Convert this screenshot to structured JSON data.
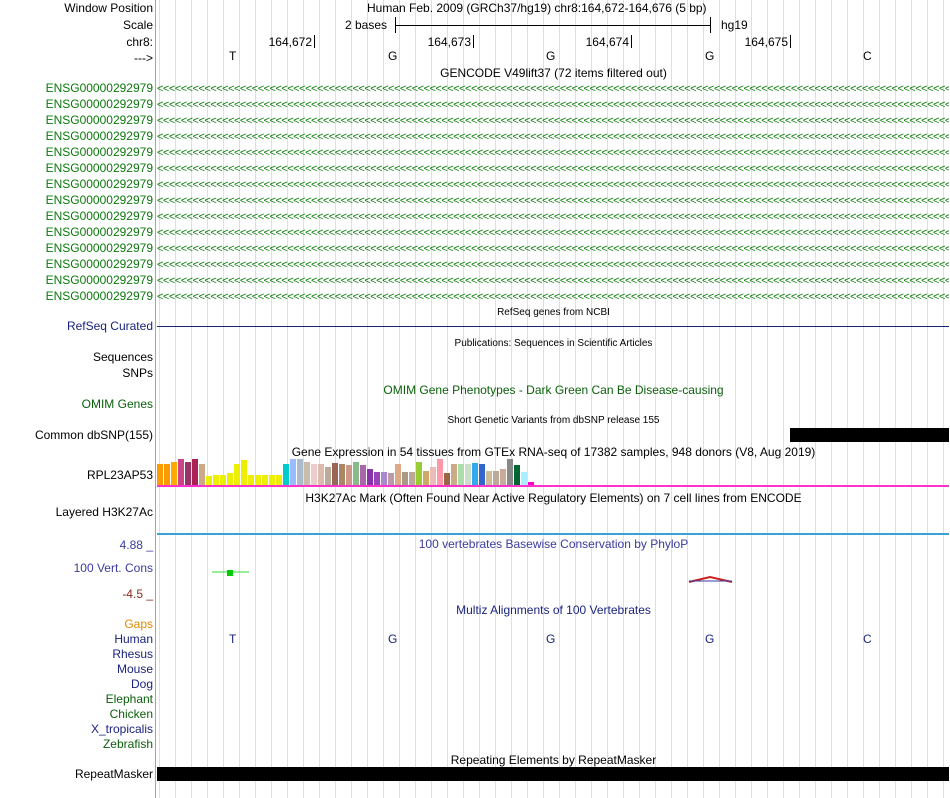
{
  "header": {
    "window_position_label": "Window Position",
    "scale_label": "Scale",
    "chr_label": "chr8:",
    "strand_label": "--->",
    "assembly_text": "Human Feb. 2009 (GRCh37/hg19)   chr8:164,672-164,676 (5 bp)",
    "scale_text": "2 bases",
    "db_text": "hg19",
    "positions": [
      "164,672",
      "164,673",
      "164,674",
      "164,675"
    ],
    "bases": [
      "T",
      "G",
      "G",
      "G",
      "C"
    ]
  },
  "gencode": {
    "title": "GENCODE V49lift37 (72 items filtered out)",
    "gene_label": "ENSG00000292979",
    "row_count": 14,
    "color": "#0b7a0b"
  },
  "refseq": {
    "title": "RefSeq genes from NCBI",
    "label": "RefSeq Curated",
    "color": "#1a237e"
  },
  "publications": {
    "title": "Publications: Sequences in Scientific Articles",
    "label_sequences": "Sequences",
    "label_snps": "SNPs"
  },
  "omim": {
    "title": "OMIM Gene Phenotypes - Dark Green Can Be Disease-causing",
    "label": "OMIM Genes",
    "color": "#0a5f0a"
  },
  "dbsnp": {
    "title": "Short Genetic Variants from dbSNP release 155",
    "label": "Common dbSNP(155)"
  },
  "gtex": {
    "title": "Gene Expression in 54 tissues from GTEx RNA-seq of 17382 samples, 948 donors (V8, Aug 2019)",
    "label": "RPL23AP53",
    "tissue_colors": [
      "#ff9900",
      "#ff9900",
      "#ffaa00",
      "#cc4488",
      "#993366",
      "#aa2255",
      "#ccaa88",
      "#eeee00",
      "#eeee00",
      "#eeee00",
      "#eeee00",
      "#eeee00",
      "#eeee00",
      "#eeee00",
      "#eeee00",
      "#eeee00",
      "#eeee00",
      "#eeee00",
      "#00cccc",
      "#99bbff",
      "#aabbcc",
      "#ccbbaa",
      "#eecccc",
      "#ddbbaa",
      "#bbaa99",
      "#996655",
      "#aa8866",
      "#cc9988",
      "#88bb88",
      "#aa66aa",
      "#8833aa",
      "#9944bb",
      "#aa88cc",
      "#bb99aa",
      "#ddaa88",
      "#aa9988",
      "#bbaa99",
      "#99cc33",
      "#ccaa66",
      "#eebbbb",
      "#ff99aa",
      "#996644",
      "#ccaa88",
      "#aaddaa",
      "#ccddcc",
      "#33aaee",
      "#3366cc",
      "#ccbb99",
      "#bbaa99",
      "#ccaa99",
      "#888888",
      "#006633",
      "#aaeeff",
      "#ff00cc"
    ],
    "tissue_levels": [
      0.8,
      0.8,
      0.9,
      1.0,
      0.9,
      1.0,
      0.8,
      0.35,
      0.4,
      0.4,
      0.45,
      0.8,
      0.95,
      0.4,
      0.4,
      0.4,
      0.4,
      0.4,
      0.8,
      1.0,
      1.0,
      0.9,
      0.8,
      0.8,
      0.7,
      0.85,
      0.8,
      0.75,
      0.9,
      0.75,
      0.6,
      0.5,
      0.5,
      0.45,
      0.8,
      0.5,
      0.5,
      0.9,
      0.55,
      0.7,
      1.0,
      0.45,
      0.8,
      0.8,
      0.8,
      0.85,
      0.8,
      0.55,
      0.55,
      0.6,
      1.0,
      0.75,
      0.5,
      0.12
    ]
  },
  "h3k27ac": {
    "title": "H3K27Ac Mark (Often Found Near Active Regulatory Elements) on 7 cell lines from ENCODE",
    "label": "Layered H3K27Ac"
  },
  "cons": {
    "title": "100 vertebrates Basewise Conservation by PhyloP",
    "label": "100 Vert. Cons",
    "max_label": "4.88 _",
    "min_label": "-4.5 _",
    "color_label": "#3a3aa0",
    "color_max": "#1a1a8a",
    "color_min": "#8a2a1a"
  },
  "multiz": {
    "title": "Multiz Alignments of 100 Vertebrates",
    "species": [
      {
        "name": "Gaps",
        "color": "#e08a00"
      },
      {
        "name": "Human",
        "color": "#1a237e"
      },
      {
        "name": "Rhesus",
        "color": "#1a237e"
      },
      {
        "name": "Mouse",
        "color": "#1a237e"
      },
      {
        "name": "Dog",
        "color": "#1a237e"
      },
      {
        "name": "Elephant",
        "color": "#0a5f0a"
      },
      {
        "name": "Chicken",
        "color": "#0a5f0a"
      },
      {
        "name": "X_tropicalis",
        "color": "#1a237e"
      },
      {
        "name": "Zebrafish",
        "color": "#0a5f0a"
      }
    ],
    "human_bases": [
      "T",
      "G",
      "G",
      "G",
      "C"
    ]
  },
  "repeatmasker": {
    "title": "Repeating Elements by RepeatMasker",
    "label": "RepeatMasker"
  }
}
